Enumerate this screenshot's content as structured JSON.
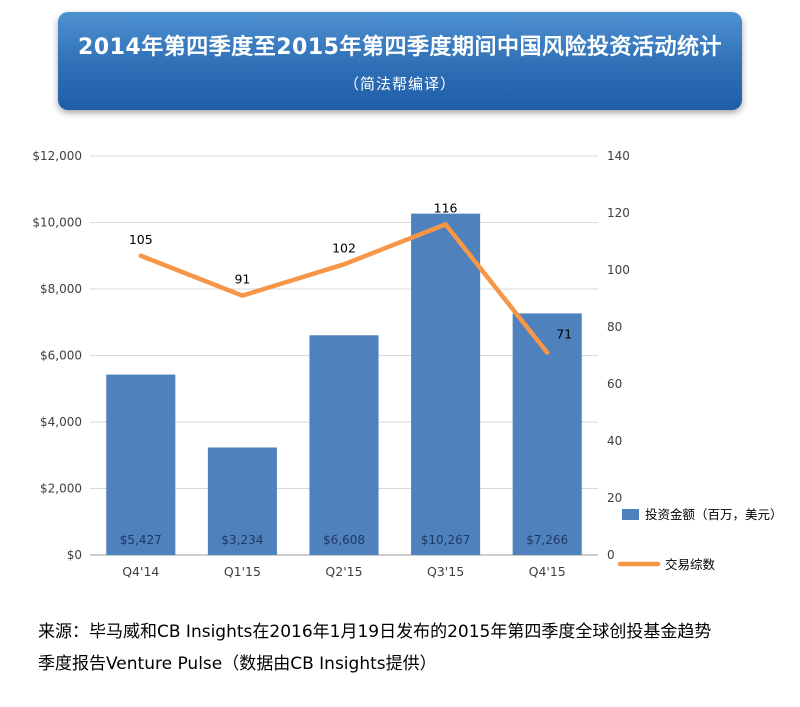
{
  "banner": {
    "title": "2014年第四季度至2015年第四季度期间中国风险投资活动统计",
    "subtitle": "（简法帮编译）"
  },
  "chart_data": {
    "type": "bar+line",
    "categories": [
      "Q4'14",
      "Q1'15",
      "Q2'15",
      "Q3'15",
      "Q4'15"
    ],
    "series": [
      {
        "name": "投资金额（百万，美元）",
        "type": "bar",
        "axis": "left",
        "values": [
          5427,
          3234,
          6608,
          10267,
          7266
        ],
        "value_labels": [
          "$5,427",
          "$3,234",
          "$6,608",
          "$10,267",
          "$7,266"
        ],
        "color": "#4f81bd"
      },
      {
        "name": "交易综数",
        "type": "line",
        "axis": "right",
        "values": [
          105,
          91,
          102,
          116,
          71
        ],
        "value_labels": [
          "105",
          "91",
          "102",
          "116",
          "71"
        ],
        "color": "#f79646"
      }
    ],
    "left_axis": {
      "min": 0,
      "max": 12000,
      "step": 2000,
      "tick_labels": [
        "$0",
        "$2,000",
        "$4,000",
        "$6,000",
        "$8,000",
        "$10,000",
        "$12,000"
      ]
    },
    "right_axis": {
      "min": 0,
      "max": 140,
      "step": 20,
      "tick_labels": [
        "0",
        "20",
        "40",
        "60",
        "80",
        "100",
        "120",
        "140"
      ]
    },
    "grid": true,
    "legend_position": "right",
    "title": "2014年第四季度至2015年第四季度期间中国风险投资活动统计",
    "xlabel": "",
    "ylabel_left": "",
    "ylabel_right": ""
  },
  "source": {
    "line1": "来源：毕马威和CB Insights在2016年1月19日发布的2015年第四季度全球创投基金趋势",
    "line2": "季度报告Venture Pulse（数据由CB Insights提供）"
  },
  "colors": {
    "bar": "#4f81bd",
    "line": "#f79646",
    "gridline": "#d9d9d9",
    "axis_text": "#404040",
    "bar_label_text": "#1f3864",
    "banner_blue": "#2e6fb6"
  }
}
